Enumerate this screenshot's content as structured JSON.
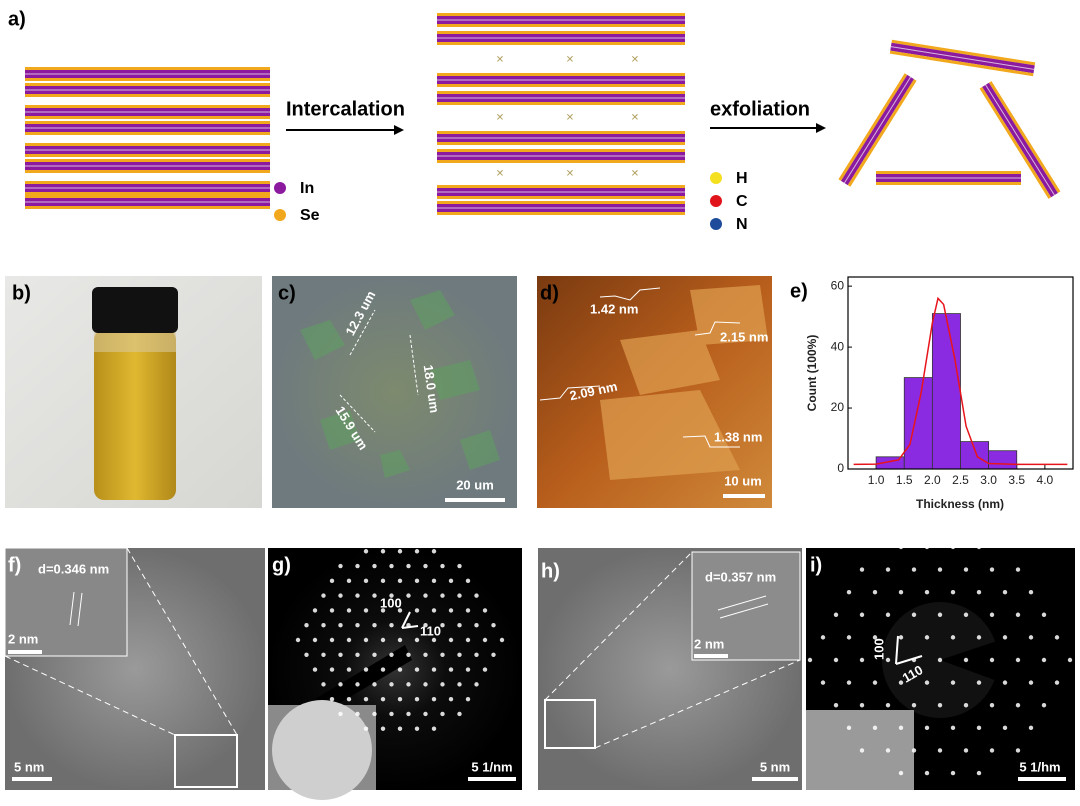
{
  "panel_a": {
    "label": "a)",
    "step1": "Intercalation",
    "step2": "exfoliation",
    "legend1": [
      "In",
      "Se"
    ],
    "legend2": [
      "H",
      "C",
      "N"
    ]
  },
  "panel_b": {
    "label": "b)"
  },
  "panel_c": {
    "label": "c)",
    "measures": [
      "12.3 um",
      "18.0 um",
      "15.9 um"
    ],
    "scale": "20 um"
  },
  "panel_d": {
    "label": "d)",
    "heights": [
      "1.42 nm",
      "2.15 nm",
      "2.09 nm",
      "1.38 nm"
    ],
    "scale": "10 um"
  },
  "panel_e": {
    "label": "e)",
    "chart_data": {
      "type": "histogram",
      "xlabel": "Thickness (nm)",
      "ylabel": "Count (100%)",
      "bins": [
        1.0,
        1.5,
        2.0,
        2.5,
        3.0,
        3.5
      ],
      "counts": [
        4,
        30,
        51,
        9,
        6
      ],
      "color": "#8a2be2",
      "fit": {
        "color": "#e8141b",
        "x": [
          0.6,
          1.0,
          1.4,
          1.6,
          1.8,
          2.0,
          2.1,
          2.2,
          2.4,
          2.6,
          2.8,
          3.0,
          3.5,
          4.4
        ],
        "values": [
          1.5,
          1.6,
          3,
          8,
          25,
          48,
          56,
          54,
          36,
          14,
          4,
          1.8,
          1.5,
          1.5
        ]
      },
      "xlim": [
        0.5,
        4.5
      ],
      "ylim": [
        0,
        63
      ],
      "xticks": [
        {
          "value": 1,
          "label": "1.0"
        },
        {
          "value": 1.5,
          "label": "1.5"
        },
        {
          "value": 2,
          "label": "2.0"
        },
        {
          "value": 2.5,
          "label": "2.5"
        },
        {
          "value": 3,
          "label": "3.0"
        },
        {
          "value": 3.5,
          "label": "3.5"
        },
        {
          "value": 4,
          "label": "4.0"
        }
      ],
      "yticks": [
        0,
        20,
        40,
        60
      ]
    }
  },
  "panel_f": {
    "label": "f)",
    "spacing": "d=0.346 nm",
    "inset_scale": "2 nm",
    "scale": "5 nm"
  },
  "panel_g": {
    "label": "g)",
    "dir1": "100",
    "dir2": "110",
    "scale": "5 1/nm"
  },
  "panel_h": {
    "label": "h)",
    "spacing": "d=0.357 nm",
    "inset_scale": "2 nm",
    "scale": "5 nm"
  },
  "panel_i": {
    "label": "i)",
    "dir1": "100",
    "dir2": "110",
    "scale": "5 1/hm"
  }
}
